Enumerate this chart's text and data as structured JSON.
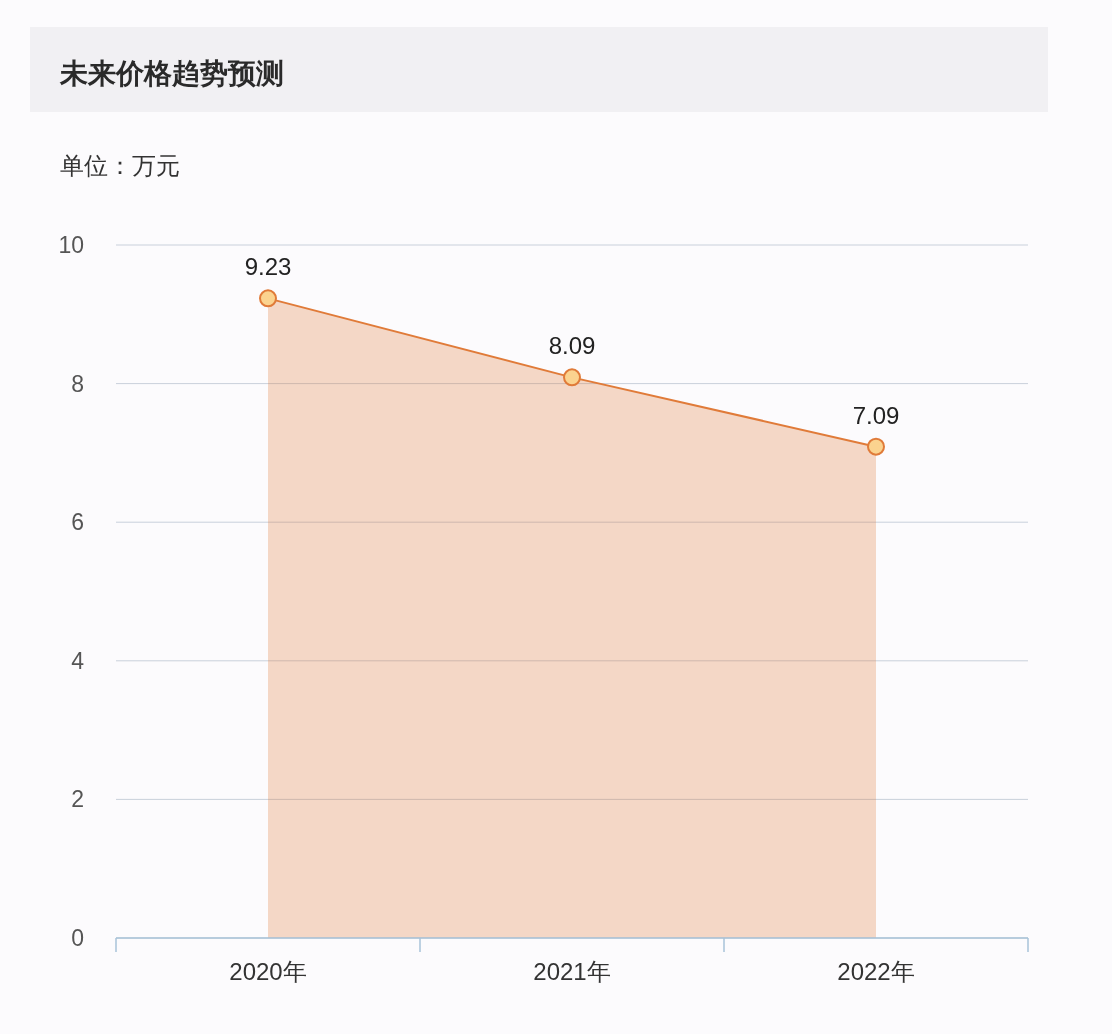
{
  "chart_data": {
    "type": "area",
    "title": "未来价格趋势预测",
    "ylabel": "单位：万元",
    "categories": [
      "2020年",
      "2021年",
      "2022年"
    ],
    "series": [
      {
        "color": "#e07b39",
        "values": [
          9.23,
          8.09,
          7.09
        ]
      }
    ],
    "ylim": [
      0,
      10
    ],
    "yticks": [
      0,
      2,
      4,
      6,
      8,
      10
    ],
    "grid": "y",
    "marker": "circle",
    "line_style": "solid",
    "data_labels": true
  }
}
